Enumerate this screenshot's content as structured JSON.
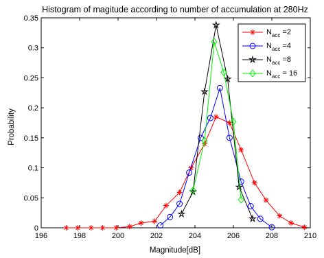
{
  "chart_data": {
    "type": "line",
    "title": "Histogram of magitude according to number of accumulation at 280Hz",
    "xlabel": "Magnitude[dB]",
    "ylabel": "Probability",
    "xlim": [
      196,
      210
    ],
    "ylim": [
      0,
      0.35
    ],
    "xticks": [
      196,
      198,
      200,
      202,
      204,
      206,
      208,
      210
    ],
    "xtick_labels": [
      "196",
      "198",
      "200",
      "202",
      "204",
      "206",
      "208",
      "210"
    ],
    "yticks": [
      0,
      0.05,
      0.1,
      0.15,
      0.2,
      0.25,
      0.3,
      0.35
    ],
    "ytick_labels": [
      "0",
      "0.05",
      "0.1",
      "0.15",
      "0.2",
      "0.25",
      "0.3",
      "0.35"
    ],
    "grid": false,
    "legend_position": "top-right",
    "series": [
      {
        "name": "N_acc =2",
        "legend_main": "N",
        "legend_sub": "acc",
        "legend_suffix": " =2",
        "color": "#ff0000",
        "marker": "asterisk",
        "x": [
          197.3,
          197.9,
          198.6,
          199.2,
          199.9,
          200.6,
          201.2,
          201.9,
          202.5,
          203.2,
          203.8,
          204.5,
          205.1,
          205.8,
          206.4,
          207.1,
          207.7,
          208.4,
          209.0,
          209.7
        ],
        "y": [
          0.0,
          0.0,
          0.0,
          0.0,
          0.0,
          0.002,
          0.008,
          0.011,
          0.037,
          0.059,
          0.1,
          0.14,
          0.185,
          0.175,
          0.13,
          0.075,
          0.046,
          0.02,
          0.008,
          0.001
        ]
      },
      {
        "name": "N_acc =4",
        "legend_main": "N",
        "legend_sub": "acc",
        "legend_suffix": " =4",
        "color": "#0000ff",
        "marker": "circle",
        "x": [
          202.2,
          202.7,
          203.2,
          203.7,
          204.3,
          204.8,
          205.3,
          205.8,
          206.4,
          206.9,
          207.4,
          208.0
        ],
        "y": [
          0.004,
          0.018,
          0.04,
          0.092,
          0.15,
          0.183,
          0.233,
          0.15,
          0.077,
          0.036,
          0.015,
          0.001
        ]
      },
      {
        "name": "N_acc =8",
        "legend_main": "N",
        "legend_sub": "acc",
        "legend_suffix": " =8",
        "color": "#000000",
        "marker": "star",
        "x": [
          203.3,
          203.9,
          204.5,
          205.1,
          205.7,
          206.3,
          207.0
        ],
        "y": [
          0.023,
          0.06,
          0.227,
          0.338,
          0.248,
          0.068,
          0.015
        ]
      },
      {
        "name": "N_acc = 16",
        "legend_main": "N",
        "legend_sub": "acc",
        "legend_suffix": " = 16",
        "color": "#00ee00",
        "marker": "diamond",
        "x": [
          203.9,
          204.5,
          205.0,
          205.5,
          206.0,
          206.4
        ],
        "y": [
          0.062,
          0.145,
          0.31,
          0.259,
          0.177,
          0.047
        ]
      }
    ]
  }
}
